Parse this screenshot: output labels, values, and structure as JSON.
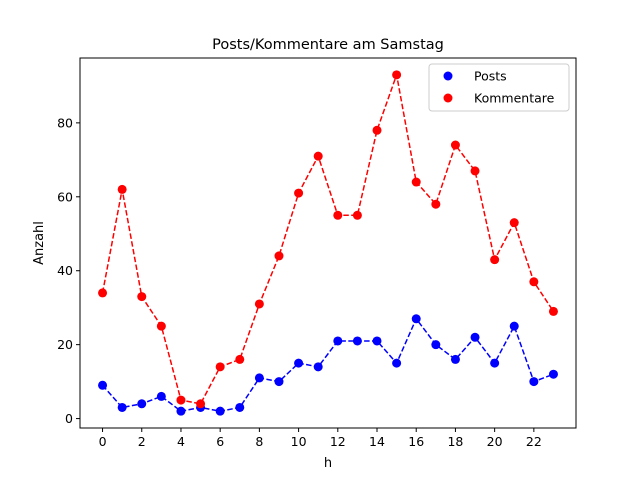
{
  "chart_data": {
    "type": "line",
    "title": "Posts/Kommentare am Samstag",
    "xlabel": "h",
    "ylabel": "Anzahl",
    "x": [
      0,
      1,
      2,
      3,
      4,
      5,
      6,
      7,
      8,
      9,
      10,
      11,
      12,
      13,
      14,
      15,
      16,
      17,
      18,
      19,
      20,
      21,
      22,
      23
    ],
    "xlim": [
      -1.15,
      24.15
    ],
    "ylim": [
      -2.55,
      97.55
    ],
    "xticks": [
      0,
      2,
      4,
      6,
      8,
      10,
      12,
      14,
      16,
      18,
      20,
      22
    ],
    "yticks": [
      0,
      20,
      40,
      60,
      80
    ],
    "grid": false,
    "legend_placement": "top-right",
    "series": [
      {
        "name": "Posts",
        "color": "#0000ff",
        "line_style": "dashed",
        "marker": "circle",
        "values": [
          9,
          3,
          4,
          6,
          2,
          3,
          2,
          3,
          11,
          10,
          15,
          14,
          21,
          21,
          21,
          15,
          27,
          20,
          16,
          22,
          15,
          25,
          10,
          12
        ]
      },
      {
        "name": "Kommentare",
        "color": "#ff0000",
        "line_style": "dashed",
        "marker": "circle",
        "values": [
          34,
          62,
          33,
          25,
          5,
          4,
          14,
          16,
          31,
          44,
          61,
          71,
          55,
          55,
          78,
          93,
          64,
          58,
          74,
          67,
          43,
          53,
          37,
          29
        ]
      }
    ]
  }
}
